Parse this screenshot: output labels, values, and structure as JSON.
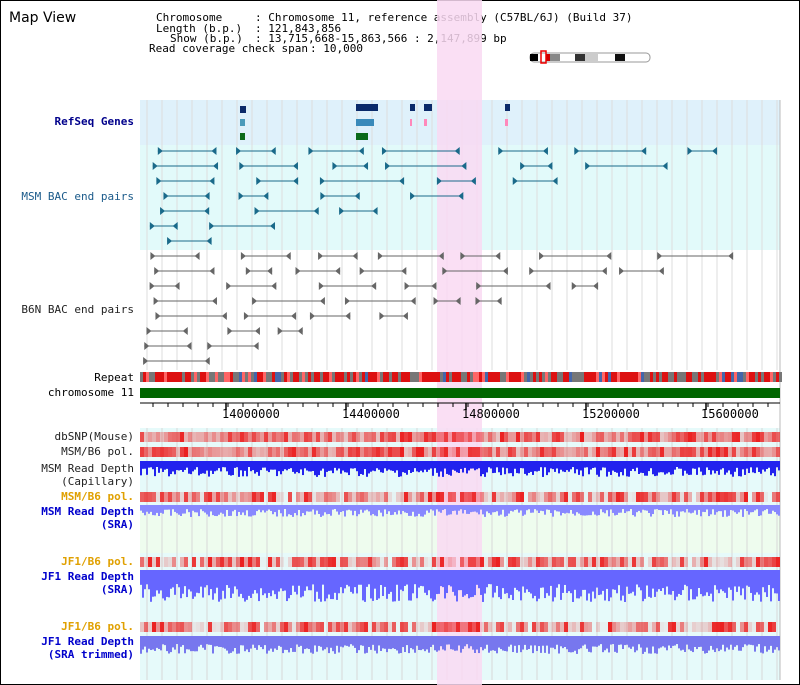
{
  "title": "Map View",
  "info": {
    "chromosome_key": "Chromosome",
    "chromosome_val": ": Chromosome 11, reference assembly (C57BL/6J) (Build 37)",
    "length_key": "Length (b.p.)",
    "length_val": ": 121,843,856",
    "show_key": "Show (b.p.)",
    "show_val": ": 13,715,668-15,863,566 : 2,147,899 bp",
    "coverage_key": "Read coverage check span",
    "coverage_val": ": 10,000"
  },
  "tracks": {
    "refseq": "RefSeq Genes",
    "msm_bac": "MSM BAC end pairs",
    "b6n_bac": "B6N BAC end pairs",
    "repeat": "Repeat",
    "chromosome": "chromosome 11",
    "dbsnp": "dbSNP(Mouse)",
    "msm_b6_pol_1": "MSM/B6 pol.",
    "msm_read_depth_cap_1": "MSM Read Depth",
    "msm_read_depth_cap_2": "(Capillary)",
    "msm_b6_pol_2": "MSM/B6 pol.",
    "msm_read_depth_sra_1": "MSM Read Depth",
    "msm_read_depth_sra_2": "(SRA)",
    "jf1_b6_pol_1": "JF1/B6 pol.",
    "jf1_read_depth_1": "JF1 Read Depth",
    "jf1_read_depth_2": "(SRA)",
    "jf1_b6_pol_2": "JF1/B6 pol.",
    "jf1_read_depth_trim_1": "JF1 Read Depth",
    "jf1_read_depth_trim_2": "(SRA trimmed)"
  },
  "axis": {
    "ticks": [
      "14000000",
      "14400000",
      "14800000",
      "15200000",
      "15600000"
    ]
  },
  "colors": {
    "refseq_bg": "#dff1fb",
    "msm_bg": "#e2fafa",
    "lower_bg": "#e6fafa",
    "highlight": "#f9d9f2",
    "gene_blue": "#0a3a7a",
    "bac_teal": "#1a6a8a",
    "b6n_gray": "#666666",
    "chromosome_green": "#006600",
    "depth_blue": "#2222ee",
    "depth_light": "#8888ff"
  }
}
